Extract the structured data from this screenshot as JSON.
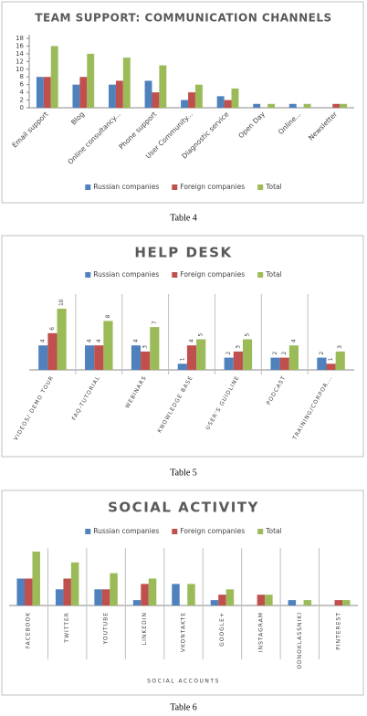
{
  "chart_data": [
    {
      "type": "bar",
      "title": "TEAM SUPPORT: COMMUNICATION CHANNELS",
      "categories": [
        "Email support",
        "Blog",
        "Online consultancy...",
        "Phone support",
        "User Community...",
        "Diagnostic service",
        "Open Day",
        "Online...",
        "Newsletter"
      ],
      "series": [
        {
          "name": "Russian companies",
          "color": "#4f81bd",
          "values": [
            8,
            6,
            6,
            7,
            2,
            3,
            1,
            1,
            0
          ]
        },
        {
          "name": "Foreign companies",
          "color": "#c0504d",
          "values": [
            8,
            8,
            7,
            4,
            4,
            2,
            0,
            0,
            1
          ]
        },
        {
          "name": "Total",
          "color": "#9bbb59",
          "values": [
            16,
            14,
            13,
            11,
            6,
            5,
            1,
            1,
            1
          ]
        }
      ],
      "ylim": [
        0,
        18
      ],
      "yticks": [
        0,
        2,
        4,
        6,
        8,
        10,
        12,
        14,
        16,
        18
      ],
      "legend": "bottom"
    },
    {
      "type": "bar",
      "title": "HELP DESK",
      "categories": [
        "VIDEOS/ DEMO TOUR",
        "FAQ-TUTORIAL",
        "WEBINARS",
        "KNOWLEDGE BASE",
        "USER'S GUIDLINE",
        "PODCAST",
        "TRAINING/CORPOR..."
      ],
      "series": [
        {
          "name": "Russian companies",
          "color": "#4f81bd",
          "values": [
            4,
            4,
            4,
            1,
            2,
            2,
            2
          ]
        },
        {
          "name": "Foreign companies",
          "color": "#c0504d",
          "values": [
            6,
            4,
            3,
            4,
            3,
            2,
            1
          ]
        },
        {
          "name": "Total",
          "color": "#9bbb59",
          "values": [
            10,
            8,
            7,
            5,
            5,
            4,
            3
          ]
        }
      ],
      "data_labels": true,
      "legend": "top"
    },
    {
      "type": "bar",
      "title": "SOCIAL ACTIVITY",
      "x_label": "SOCIAL ACCOUNTS",
      "categories": [
        "FACEBOOK",
        "TWITTER",
        "YOUTUBE",
        "LINKEDIN",
        "VKONTAKTE",
        "GOOGLE+",
        "INSTAGRAM",
        "ODNOKLASSNIKI",
        "PINTEREST"
      ],
      "series": [
        {
          "name": "Russian companies",
          "color": "#4f81bd",
          "values": [
            5,
            3,
            3,
            1,
            4,
            1,
            0,
            1,
            0
          ]
        },
        {
          "name": "Foreign companies",
          "color": "#c0504d",
          "values": [
            5,
            5,
            3,
            4,
            0,
            2,
            2,
            0,
            1
          ]
        },
        {
          "name": "Total",
          "color": "#9bbb59",
          "values": [
            10,
            8,
            6,
            5,
            4,
            3,
            2,
            1,
            1
          ]
        }
      ],
      "legend": "top"
    }
  ],
  "captions": [
    "Table 4",
    "Table 5",
    "Table 6"
  ]
}
